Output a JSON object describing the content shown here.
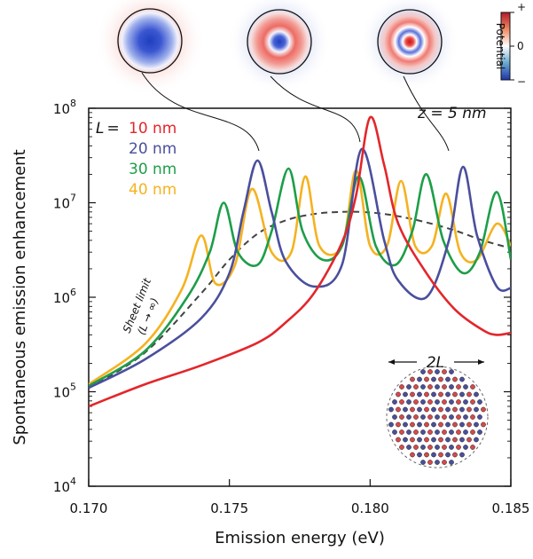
{
  "chart_data": {
    "type": "line",
    "xlabel": "Emission energy (eV)",
    "ylabel": "Spontaneous emission enhancement",
    "xlim": [
      0.17,
      0.185
    ],
    "ylim": [
      10000,
      100000000
    ],
    "y_scale": "log",
    "x_ticks": [
      "0.170",
      "0.175",
      "0.180",
      "0.185"
    ],
    "y_tick_base": "10",
    "y_tick_exponents": [
      "4",
      "5",
      "6",
      "7",
      "8"
    ],
    "legend_prefix_L": "L",
    "legend_prefix_eq": "=",
    "legend_placement": "top-left",
    "annotation_z": "z = 5 nm",
    "sheet_limit_label": "Sheet limit",
    "sheet_limit_sub": "(L → ∞)",
    "inset_label": "2L",
    "colorbar_label": "Potential",
    "colorbar_ticks": [
      "+",
      "0",
      "−"
    ],
    "series": [
      {
        "name": "10 nm",
        "color": "#e3262b",
        "x": [
          0.17,
          0.172,
          0.174,
          0.176,
          0.177,
          0.178,
          0.179,
          0.1795,
          0.18,
          0.1805,
          0.181,
          0.182,
          0.183,
          0.184,
          0.1845,
          0.185
        ],
        "y": [
          70000,
          120000,
          190000,
          330000,
          540000,
          1100000,
          3800000,
          12000000,
          80000000,
          25000000,
          6000000,
          1800000,
          750000,
          450000,
          400000,
          420000
        ]
      },
      {
        "name": "20 nm",
        "color": "#4a4f9d",
        "x": [
          0.17,
          0.172,
          0.174,
          0.175,
          0.1755,
          0.176,
          0.1765,
          0.177,
          0.178,
          0.179,
          0.1797,
          0.1805,
          0.181,
          0.182,
          0.1828,
          0.1833,
          0.1838,
          0.1845,
          0.185
        ],
        "y": [
          110000,
          220000,
          600000,
          1800000,
          8000000,
          28000000,
          8000000,
          2400000,
          1300000,
          2200000,
          37000000,
          4000000,
          1500000,
          1000000,
          4000000,
          24000000,
          4500000,
          1300000,
          1250000
        ]
      },
      {
        "name": "30 nm",
        "color": "#1d9e49",
        "x": [
          0.17,
          0.172,
          0.1735,
          0.1743,
          0.1748,
          0.1753,
          0.176,
          0.1765,
          0.1771,
          0.1776,
          0.1783,
          0.179,
          0.1796,
          0.1802,
          0.1809,
          0.1815,
          0.182,
          0.1826,
          0.1833,
          0.1839,
          0.1845,
          0.185
        ],
        "y": [
          115000,
          270000,
          1000000,
          3000000,
          10000000,
          3000000,
          2200000,
          5000000,
          23000000,
          5000000,
          2500000,
          3500000,
          19000000,
          3500000,
          2200000,
          5000000,
          20000000,
          4000000,
          1800000,
          3000000,
          13000000,
          2500000
        ]
      },
      {
        "name": "40 nm",
        "color": "#f5b220",
        "x": [
          0.17,
          0.172,
          0.1733,
          0.174,
          0.1745,
          0.1752,
          0.1758,
          0.1765,
          0.1772,
          0.1777,
          0.1782,
          0.179,
          0.1795,
          0.18,
          0.1806,
          0.1811,
          0.1816,
          0.1822,
          0.1827,
          0.1832,
          0.1838,
          0.1845,
          0.185
        ],
        "y": [
          120000,
          320000,
          1200000,
          4500000,
          1400000,
          2200000,
          14000000,
          3000000,
          3000000,
          19000000,
          3500000,
          3500000,
          22000000,
          3500000,
          3500000,
          17000000,
          3500000,
          3500000,
          12500000,
          3000000,
          2500000,
          6000000,
          3500000
        ]
      },
      {
        "name": "Sheet limit",
        "color": "#444444",
        "dashed": true,
        "x": [
          0.17,
          0.172,
          0.174,
          0.175,
          0.176,
          0.177,
          0.178,
          0.179,
          0.18,
          0.181,
          0.182,
          0.183,
          0.184,
          0.185
        ],
        "y": [
          110000,
          260000,
          1100000,
          2500000,
          4700000,
          6500000,
          7600000,
          8000000,
          7900000,
          7200000,
          6200000,
          5100000,
          4000000,
          3300000
        ]
      }
    ],
    "colors": {
      "potential_positive": "#d7191c",
      "potential_negative": "#2c3fbf"
    }
  }
}
